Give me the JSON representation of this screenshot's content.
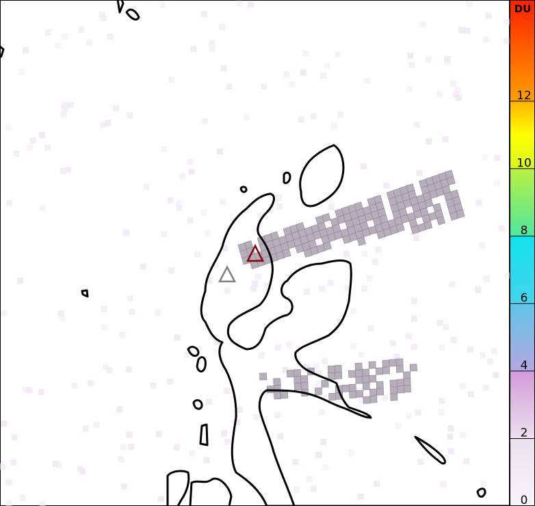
{
  "map": {
    "background_color": "#ffffff",
    "coastline_color": "#000000",
    "plume_cell_color": "#b7aebb",
    "volcanoes": [
      {
        "marker": "triangle",
        "color": "#8b0000"
      },
      {
        "marker": "triangle",
        "color": "#808080"
      }
    ]
  },
  "colorbar": {
    "unit": "DU",
    "min": 0,
    "max": 15,
    "ticks": [
      "0",
      "2",
      "4",
      "6",
      "8",
      "10",
      "12"
    ],
    "tick_values": [
      0,
      2,
      4,
      6,
      8,
      10,
      12
    ],
    "colors": [
      {
        "value": 0,
        "color": "#f8f4fa"
      },
      {
        "value": 2,
        "color": "#ece0ee"
      },
      {
        "value": 3.99,
        "color": "#d39ad9"
      },
      {
        "value": 4,
        "color": "#b4a8e0"
      },
      {
        "value": 6,
        "color": "#60c4e8"
      },
      {
        "value": 6.01,
        "color": "#44d4ec"
      },
      {
        "value": 8,
        "color": "#12e2ee"
      },
      {
        "value": 8.01,
        "color": "#50e8a0"
      },
      {
        "value": 10,
        "color": "#b8f040"
      },
      {
        "value": 10.01,
        "color": "#d8f820"
      },
      {
        "value": 11,
        "color": "#ffff00"
      },
      {
        "value": 12,
        "color": "#ffb400"
      },
      {
        "value": 12.01,
        "color": "#ffa000"
      },
      {
        "value": 15,
        "color": "#ff2000"
      }
    ]
  }
}
